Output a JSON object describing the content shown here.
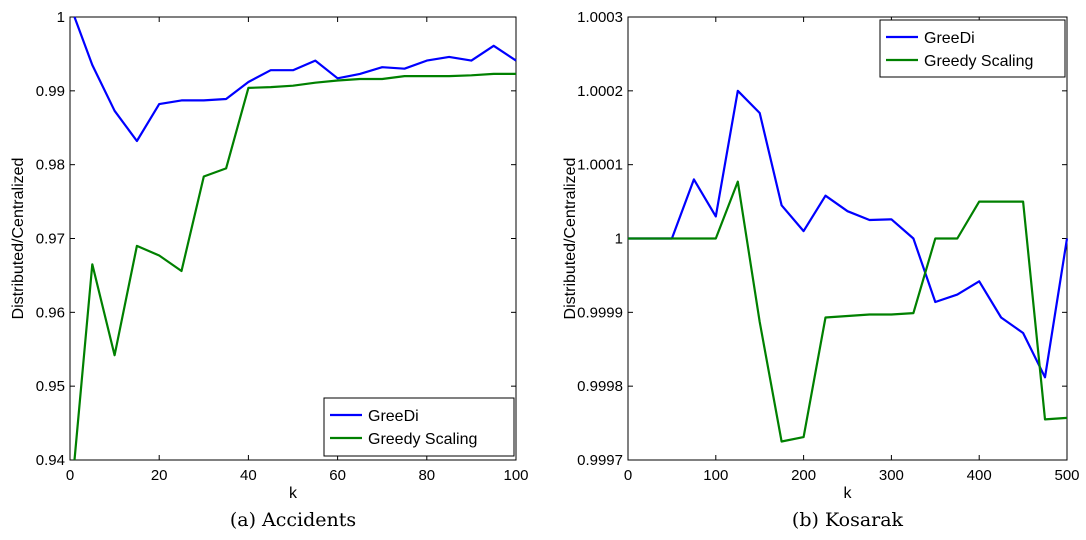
{
  "chart_data": [
    {
      "type": "line",
      "caption": "(a) Accidents",
      "xlabel": "k",
      "ylabel": "Distributed/Centralized",
      "xlim": [
        0,
        100
      ],
      "ylim": [
        0.94,
        1.0
      ],
      "xticks": [
        0,
        20,
        40,
        60,
        80,
        100
      ],
      "yticks": [
        0.94,
        0.95,
        0.96,
        0.97,
        0.98,
        0.99,
        1.0
      ],
      "ytick_labels": [
        "0.94",
        "0.95",
        "0.96",
        "0.97",
        "0.98",
        "0.99",
        "1"
      ],
      "legend_position": "bottom-right",
      "series": [
        {
          "name": "GreeDi",
          "color": "#0000ff",
          "x": [
            1,
            5,
            10,
            15,
            20,
            25,
            30,
            35,
            40,
            45,
            50,
            55,
            60,
            65,
            70,
            75,
            80,
            85,
            90,
            95,
            100
          ],
          "y": [
            1.0,
            0.9935,
            0.9873,
            0.9832,
            0.9882,
            0.9887,
            0.9887,
            0.9889,
            0.9912,
            0.9928,
            0.9928,
            0.9941,
            0.9917,
            0.9923,
            0.9932,
            0.993,
            0.9941,
            0.9946,
            0.9941,
            0.9961,
            0.9941
          ]
        },
        {
          "name": "Greedy Scaling",
          "color": "#008000",
          "x": [
            1,
            5,
            10,
            15,
            20,
            25,
            30,
            35,
            40,
            45,
            50,
            55,
            60,
            65,
            70,
            75,
            80,
            85,
            90,
            95,
            100
          ],
          "y": [
            0.94,
            0.9665,
            0.9542,
            0.969,
            0.9677,
            0.9656,
            0.9784,
            0.9795,
            0.9904,
            0.9905,
            0.9907,
            0.9911,
            0.9914,
            0.9916,
            0.9916,
            0.992,
            0.992,
            0.992,
            0.9921,
            0.9923,
            0.9923
          ]
        }
      ]
    },
    {
      "type": "line",
      "caption": "(b) Kosarak",
      "xlabel": "k",
      "ylabel": "Distributed/Centralized",
      "xlim": [
        0,
        500
      ],
      "ylim": [
        0.9997,
        1.0003
      ],
      "xticks": [
        0,
        100,
        200,
        300,
        400,
        500
      ],
      "yticks": [
        0.9997,
        0.9998,
        0.9999,
        1.0,
        1.0001,
        1.0002,
        1.0003
      ],
      "ytick_labels": [
        "0.9997",
        "0.9998",
        "0.9999",
        "1",
        "1.0001",
        "1.0002",
        "1.0003"
      ],
      "legend_position": "top-right",
      "series": [
        {
          "name": "GreeDi",
          "color": "#0000ff",
          "x": [
            0,
            25,
            50,
            75,
            100,
            125,
            150,
            175,
            200,
            225,
            250,
            275,
            300,
            325,
            350,
            375,
            400,
            425,
            450,
            475,
            500
          ],
          "y": [
            1.0,
            1.0,
            1.0,
            1.00008,
            1.00003,
            1.0002,
            1.00017,
            1.000045,
            1.00001,
            1.000058,
            1.000037,
            1.000025,
            1.000026,
            1.0,
            0.999914,
            0.999924,
            0.999942,
            0.999893,
            0.999872,
            0.999812,
            1.0
          ]
        },
        {
          "name": "Greedy Scaling",
          "color": "#008000",
          "x": [
            0,
            25,
            50,
            75,
            100,
            125,
            150,
            175,
            200,
            225,
            250,
            275,
            300,
            325,
            350,
            375,
            400,
            425,
            450,
            475,
            500
          ],
          "y": [
            1.0,
            1.0,
            1.0,
            1.0,
            1.0,
            1.000077,
            0.999887,
            0.999725,
            0.999731,
            0.999893,
            0.999895,
            0.999897,
            0.999897,
            0.999899,
            1.0,
            1.0,
            1.00005,
            1.00005,
            1.00005,
            0.999755,
            0.999757
          ]
        }
      ]
    }
  ]
}
